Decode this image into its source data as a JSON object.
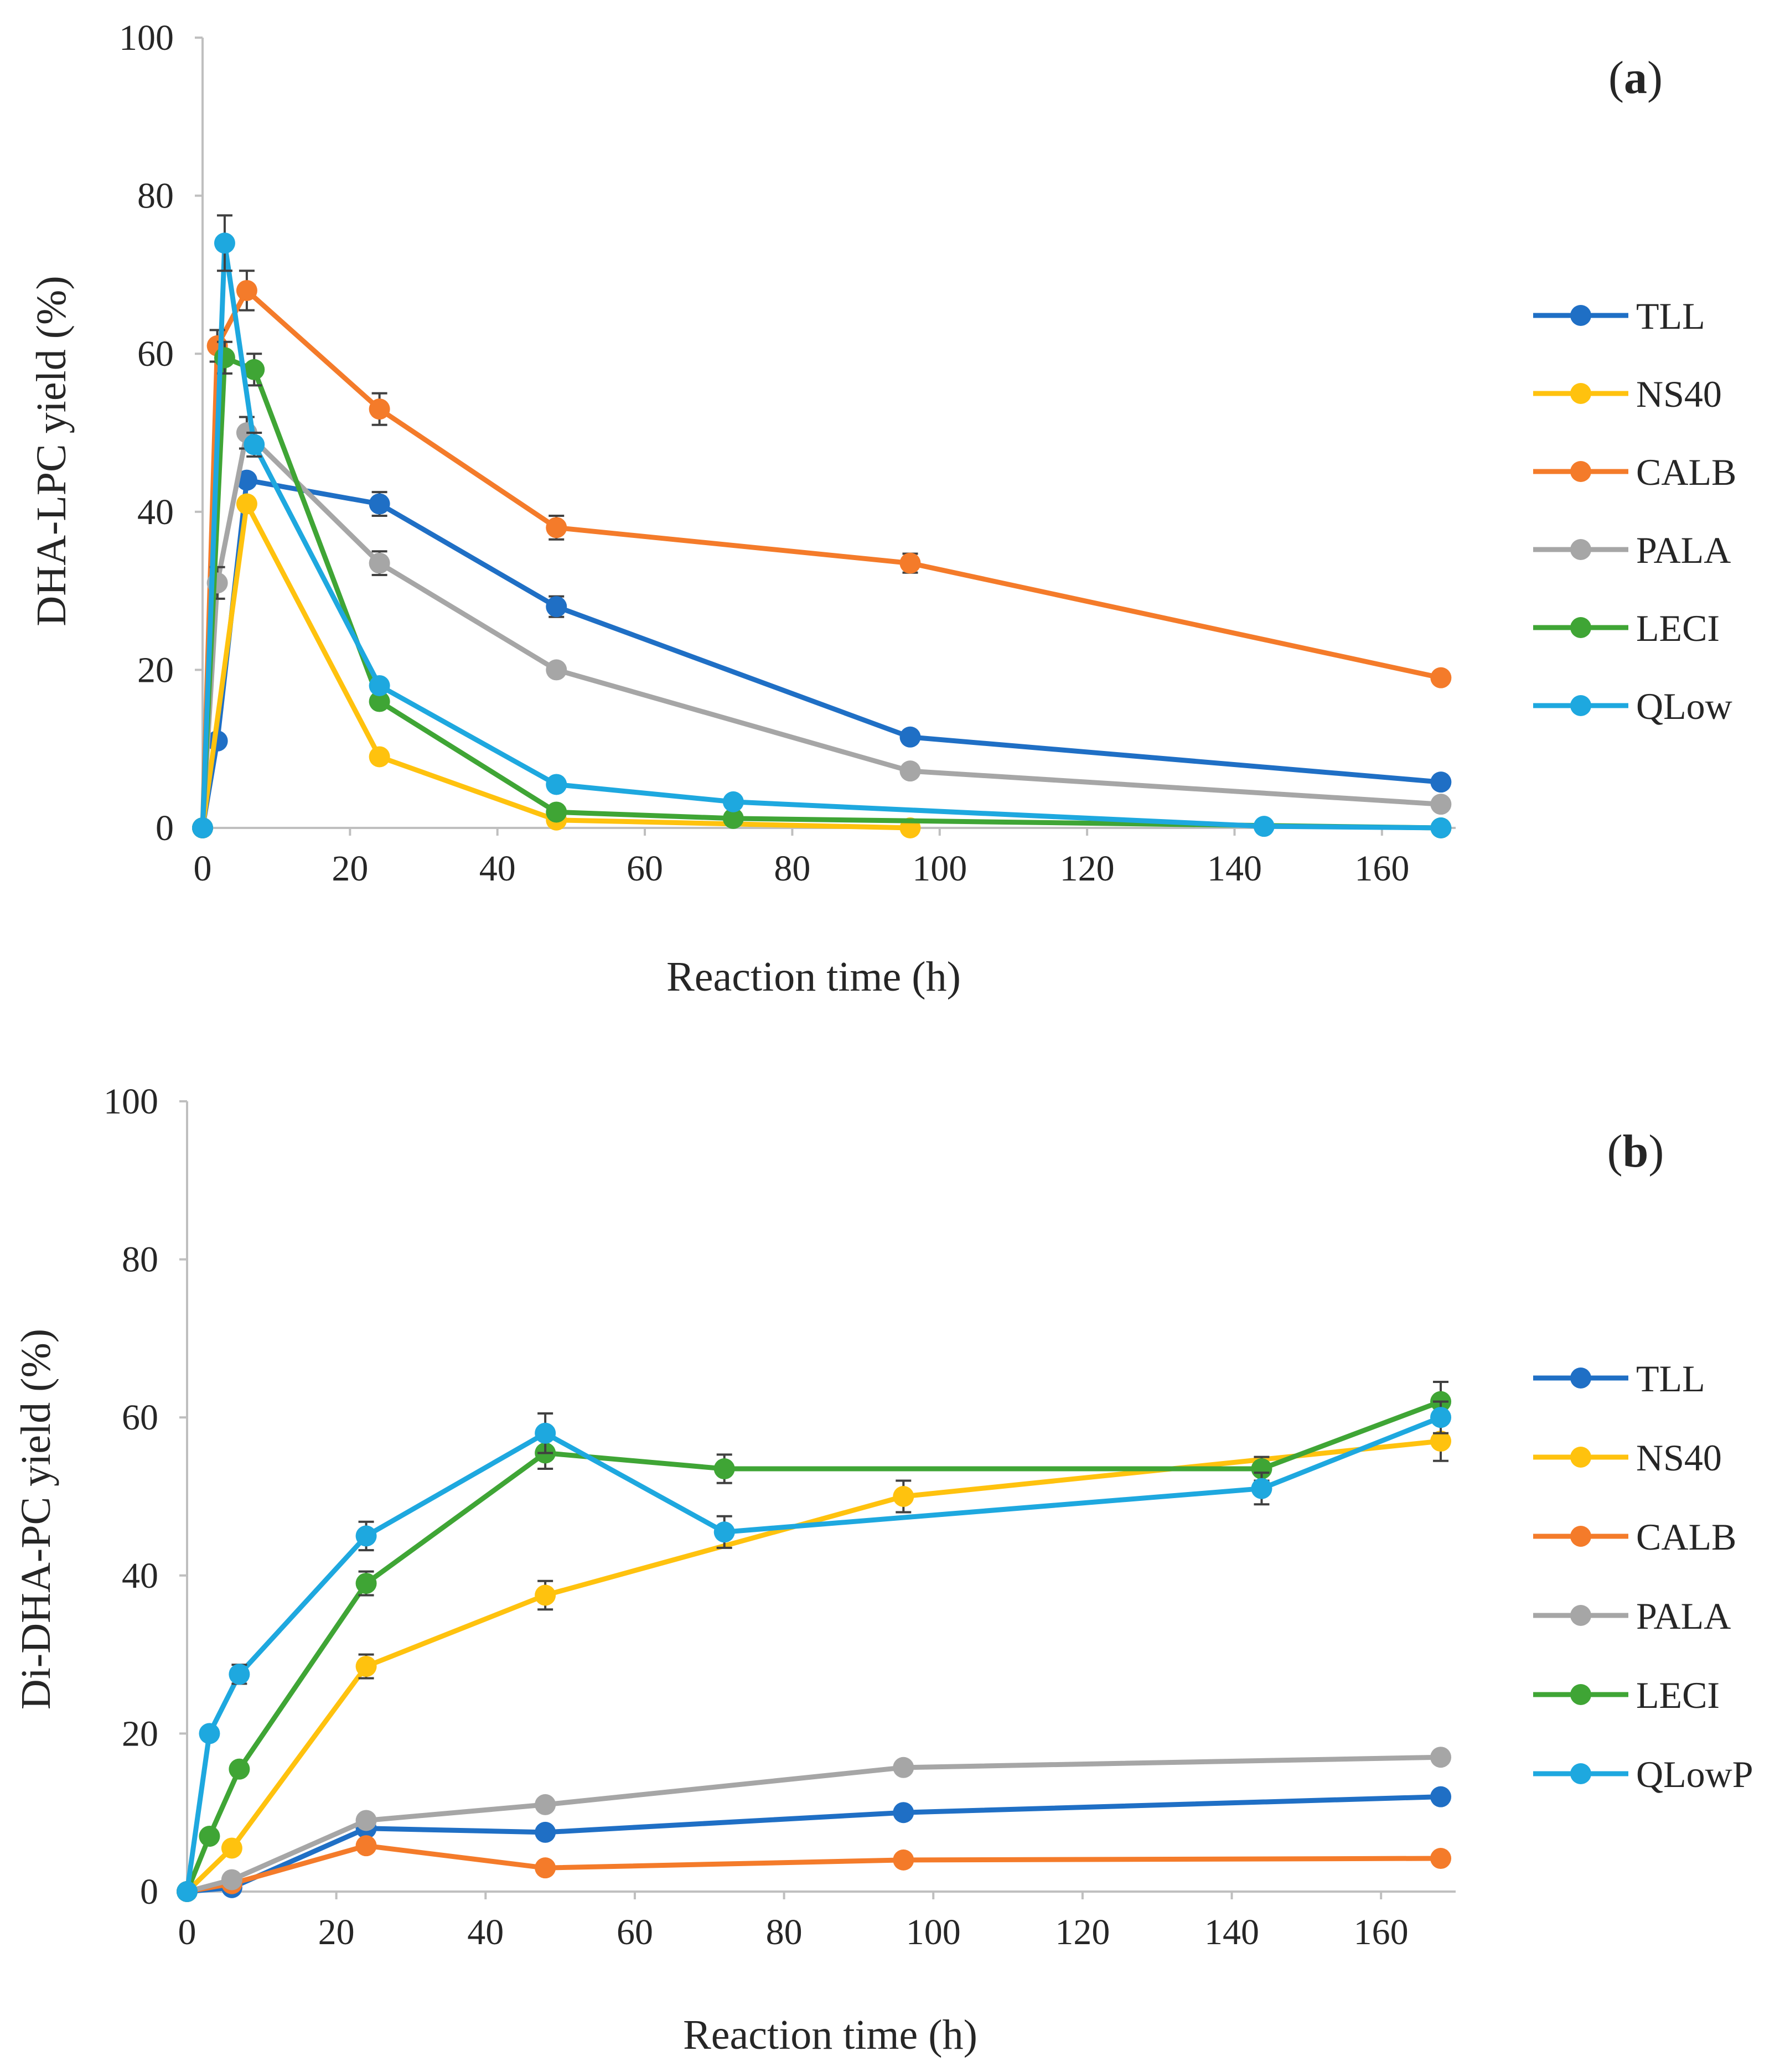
{
  "colors": {
    "TLL": "#1f6fc5",
    "NS40": "#ffc20e",
    "CALB": "#f47b2a",
    "PALA": "#a6a6a6",
    "LECI": "#3fa535",
    "QLow": "#1ea8df",
    "axis": "#bfbfbf",
    "error_bar": "#404040"
  },
  "chart_data": [
    {
      "type": "line",
      "panel": "(a)",
      "panel_open": "(",
      "panel_letter": "a",
      "panel_close": ")",
      "ylabel": "DHA-LPC yield (%)",
      "xlabel": "Reaction time (h)",
      "xlim": [
        0,
        170
      ],
      "ylim": [
        0,
        100
      ],
      "xticks": [
        0,
        20,
        40,
        60,
        80,
        100,
        120,
        140,
        160
      ],
      "yticks": [
        0,
        20,
        40,
        60,
        80,
        100
      ],
      "legend_position": "right",
      "series": [
        {
          "name": "TLL",
          "color_key": "TLL",
          "points": [
            [
              0,
              0
            ],
            [
              2,
              11
            ],
            [
              6,
              44
            ],
            [
              24,
              41
            ],
            [
              48,
              28
            ],
            [
              96,
              11.5
            ],
            [
              168,
              5.8
            ]
          ],
          "errors": [
            0,
            0,
            0,
            1.5,
            1.3,
            0,
            0
          ]
        },
        {
          "name": "NS40",
          "color_key": "NS40",
          "points": [
            [
              0,
              0
            ],
            [
              6,
              41
            ],
            [
              24,
              9
            ],
            [
              48,
              1
            ],
            [
              96,
              0
            ]
          ],
          "errors": [
            0,
            0,
            0,
            0,
            0
          ]
        },
        {
          "name": "CALB",
          "color_key": "CALB",
          "points": [
            [
              0,
              0
            ],
            [
              2,
              61
            ],
            [
              6,
              68
            ],
            [
              24,
              53
            ],
            [
              48,
              38
            ],
            [
              96,
              33.5
            ],
            [
              168,
              19
            ]
          ],
          "errors": [
            0,
            2,
            2.5,
            2,
            1.5,
            1.2,
            0
          ]
        },
        {
          "name": "PALA",
          "color_key": "PALA",
          "points": [
            [
              0,
              0
            ],
            [
              2,
              31
            ],
            [
              6,
              50
            ],
            [
              24,
              33.5
            ],
            [
              48,
              20
            ],
            [
              96,
              7.2
            ],
            [
              168,
              3
            ]
          ],
          "errors": [
            0,
            2,
            2,
            1.5,
            0,
            0,
            0
          ]
        },
        {
          "name": "LECI",
          "color_key": "LECI",
          "points": [
            [
              0,
              0
            ],
            [
              3,
              59.5
            ],
            [
              7,
              58
            ],
            [
              24,
              16
            ],
            [
              48,
              2
            ],
            [
              72,
              1.2
            ],
            [
              168,
              0
            ]
          ],
          "errors": [
            0,
            2,
            2,
            0,
            0,
            0,
            0
          ]
        },
        {
          "name": "QLow",
          "color_key": "QLow",
          "points": [
            [
              0,
              0
            ],
            [
              3,
              74
            ],
            [
              7,
              48.5
            ],
            [
              24,
              18
            ],
            [
              48,
              5.5
            ],
            [
              72,
              3.3
            ],
            [
              144,
              0.2
            ],
            [
              168,
              0
            ]
          ],
          "errors": [
            0,
            3.5,
            1.5,
            0,
            0,
            0,
            0,
            0
          ]
        }
      ]
    },
    {
      "type": "line",
      "panel": "(b)",
      "panel_open": "(",
      "panel_letter": "b",
      "panel_close": ")",
      "ylabel": "Di-DHA-PC yield (%)",
      "xlabel": "Reaction time (h)",
      "xlim": [
        0,
        170
      ],
      "ylim": [
        0,
        100
      ],
      "xticks": [
        0,
        20,
        40,
        60,
        80,
        100,
        120,
        140,
        160
      ],
      "yticks": [
        0,
        20,
        40,
        60,
        80,
        100
      ],
      "legend_position": "right",
      "series": [
        {
          "name": "TLL",
          "color_key": "TLL",
          "points": [
            [
              0,
              0
            ],
            [
              6,
              0.5
            ],
            [
              24,
              8
            ],
            [
              48,
              7.5
            ],
            [
              96,
              10
            ],
            [
              168,
              12
            ]
          ],
          "errors": [
            0,
            0,
            0,
            0,
            0,
            0
          ]
        },
        {
          "name": "NS40",
          "color_key": "NS40",
          "points": [
            [
              0,
              0
            ],
            [
              6,
              5.5
            ],
            [
              24,
              28.5
            ],
            [
              48,
              37.5
            ],
            [
              96,
              50
            ],
            [
              168,
              57
            ]
          ],
          "errors": [
            0,
            0,
            1.5,
            1.8,
            2,
            2.5
          ]
        },
        {
          "name": "CALB",
          "color_key": "CALB",
          "points": [
            [
              0,
              0
            ],
            [
              6,
              1
            ],
            [
              24,
              5.8
            ],
            [
              48,
              3
            ],
            [
              96,
              4
            ],
            [
              168,
              4.2
            ]
          ],
          "errors": [
            0,
            0,
            0,
            0,
            0,
            0
          ]
        },
        {
          "name": "PALA",
          "color_key": "PALA",
          "points": [
            [
              0,
              0
            ],
            [
              6,
              1.5
            ],
            [
              24,
              9
            ],
            [
              48,
              11
            ],
            [
              96,
              15.7
            ],
            [
              168,
              17
            ]
          ],
          "errors": [
            0,
            0,
            0,
            0,
            0,
            0
          ]
        },
        {
          "name": "LECI",
          "color_key": "LECI",
          "points": [
            [
              0,
              0
            ],
            [
              3,
              7
            ],
            [
              7,
              15.5
            ],
            [
              24,
              39
            ],
            [
              48,
              55.5
            ],
            [
              72,
              53.5
            ],
            [
              144,
              53.5
            ],
            [
              168,
              62
            ]
          ],
          "errors": [
            0,
            0,
            0,
            1.5,
            2,
            1.8,
            1.5,
            2.5
          ]
        },
        {
          "name": "QLowP",
          "color_key": "QLow",
          "points": [
            [
              0,
              0
            ],
            [
              3,
              20
            ],
            [
              7,
              27.5
            ],
            [
              24,
              45
            ],
            [
              48,
              58
            ],
            [
              72,
              45.5
            ],
            [
              144,
              51
            ],
            [
              168,
              60
            ]
          ],
          "errors": [
            0,
            0,
            1.2,
            1.8,
            2.5,
            2,
            2,
            2
          ]
        }
      ]
    }
  ]
}
